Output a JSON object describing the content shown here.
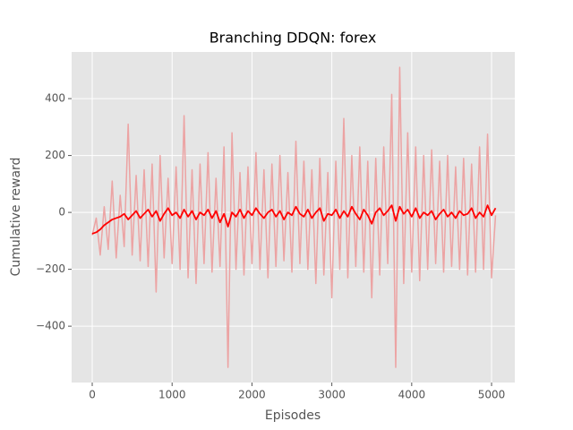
{
  "chart_data": {
    "type": "line",
    "title": "Branching DDQN: forex",
    "xlabel": "Episodes",
    "ylabel": "Cumulative reward",
    "x": [
      0,
      50,
      100,
      150,
      200,
      250,
      300,
      350,
      400,
      450,
      500,
      550,
      600,
      650,
      700,
      750,
      800,
      850,
      900,
      950,
      1000,
      1050,
      1100,
      1150,
      1200,
      1250,
      1300,
      1350,
      1400,
      1450,
      1500,
      1550,
      1600,
      1650,
      1700,
      1750,
      1800,
      1850,
      1900,
      1950,
      2000,
      2050,
      2100,
      2150,
      2200,
      2250,
      2300,
      2350,
      2400,
      2450,
      2500,
      2550,
      2600,
      2650,
      2700,
      2750,
      2800,
      2850,
      2900,
      2950,
      3000,
      3050,
      3100,
      3150,
      3200,
      3250,
      3300,
      3350,
      3400,
      3450,
      3500,
      3550,
      3600,
      3650,
      3700,
      3750,
      3800,
      3850,
      3900,
      3950,
      4000,
      4050,
      4100,
      4150,
      4200,
      4250,
      4300,
      4350,
      4400,
      4450,
      4500,
      4550,
      4600,
      4650,
      4700,
      4750,
      4800,
      4850,
      4900,
      4950,
      5000,
      5050
    ],
    "series": [
      {
        "color": "#eca3a3",
        "values": [
          -80,
          -20,
          -150,
          20,
          -130,
          110,
          -160,
          60,
          -120,
          310,
          -150,
          130,
          -170,
          150,
          -190,
          170,
          -280,
          200,
          -160,
          120,
          -180,
          160,
          -200,
          340,
          -230,
          150,
          -250,
          170,
          -180,
          210,
          -210,
          120,
          -190,
          230,
          -545,
          280,
          -200,
          140,
          -220,
          160,
          -180,
          210,
          -200,
          150,
          -230,
          170,
          -190,
          200,
          -170,
          140,
          -210,
          250,
          -180,
          180,
          -200,
          150,
          -250,
          190,
          -220,
          140,
          -300,
          180,
          -200,
          330,
          -230,
          200,
          -190,
          230,
          -210,
          180,
          -300,
          190,
          -220,
          230,
          -180,
          415,
          -545,
          510,
          -250,
          280,
          -210,
          230,
          -240,
          200,
          -200,
          220,
          -180,
          180,
          -210,
          200,
          -190,
          160,
          -200,
          190,
          -220,
          170,
          -210,
          230,
          -200,
          275,
          -230,
          -10
        ]
      },
      {
        "color": "#ff0000",
        "values": [
          -75,
          -70,
          -60,
          -45,
          -35,
          -25,
          -20,
          -15,
          -5,
          -25,
          -10,
          5,
          -20,
          -5,
          10,
          -15,
          5,
          -30,
          -5,
          15,
          -10,
          0,
          -20,
          10,
          -15,
          5,
          -25,
          0,
          -10,
          10,
          -20,
          5,
          -35,
          -5,
          -50,
          0,
          -15,
          10,
          -20,
          5,
          -10,
          15,
          -5,
          -20,
          0,
          10,
          -15,
          5,
          -25,
          0,
          -10,
          20,
          -5,
          -15,
          10,
          -20,
          0,
          15,
          -30,
          -5,
          -10,
          10,
          -20,
          5,
          -15,
          20,
          -5,
          -25,
          10,
          -10,
          -40,
          0,
          15,
          -10,
          5,
          25,
          -30,
          20,
          -5,
          10,
          -15,
          15,
          -20,
          0,
          -10,
          5,
          -25,
          -5,
          10,
          -15,
          0,
          -20,
          5,
          -10,
          -5,
          15,
          -20,
          0,
          -15,
          25,
          -10,
          15
        ]
      }
    ],
    "xlim": [
      -258,
      5291
    ],
    "ylim": [
      -598,
      564
    ],
    "xticks": [
      0,
      1000,
      2000,
      3000,
      4000,
      5000
    ],
    "yticks": [
      {
        "value": -400,
        "label": "−400"
      },
      {
        "value": -200,
        "label": "−200"
      },
      0,
      200,
      400
    ],
    "grid": true,
    "background": "#e5e5e5"
  }
}
